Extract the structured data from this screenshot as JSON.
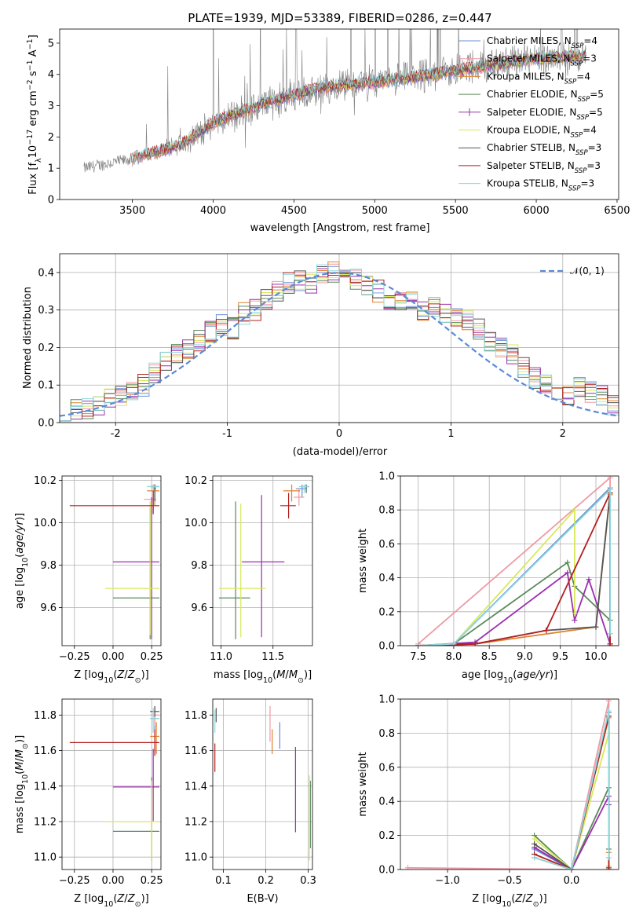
{
  "colors": {
    "Chabrier MILES": "#6b8fd6",
    "Salpeter MILES": "#ef9aa6",
    "Kroupa MILES": "#e0822f",
    "Chabrier ELODIE": "#5a8a5a",
    "Salpeter ELODIE": "#9b2fae",
    "Kroupa ELODIE": "#d8e85a",
    "Chabrier STELIB": "#555555",
    "Salpeter STELIB": "#b22020",
    "Kroupa STELIB": "#8fd6dd",
    "data": "#808080",
    "normal": "#5b8ad8"
  },
  "models": [
    {
      "name": "Chabrier MILES",
      "nssp": "4"
    },
    {
      "name": "Salpeter MILES",
      "nssp": "3"
    },
    {
      "name": "Kroupa MILES",
      "nssp": "4"
    },
    {
      "name": "Chabrier ELODIE",
      "nssp": "5"
    },
    {
      "name": "Salpeter ELODIE",
      "nssp": "5"
    },
    {
      "name": "Kroupa ELODIE",
      "nssp": "4"
    },
    {
      "name": "Chabrier STELIB",
      "nssp": "3"
    },
    {
      "name": "Salpeter STELIB",
      "nssp": "3"
    },
    {
      "name": "Kroupa STELIB",
      "nssp": "3"
    }
  ],
  "chart_data": [
    {
      "id": "spectrum",
      "type": "line",
      "title": "PLATE=1939, MJD=53389, FIBERID=0286, z=0.447",
      "xlabel": "wavelength [Angstrom, rest frame]",
      "ylabel": "Flux [fλ10⁻¹⁷ erg cm⁻² s⁻¹ A⁻¹]",
      "xlim": [
        3050,
        6510
      ],
      "ylim": [
        0,
        5.45
      ],
      "xticks": [
        3500,
        4000,
        4500,
        5000,
        5500,
        6000,
        6500
      ],
      "yticks": [
        0,
        1,
        2,
        3,
        4,
        5
      ],
      "grid": false,
      "legend": "upper right",
      "continuum": [
        [
          3200,
          1.0
        ],
        [
          3500,
          1.3
        ],
        [
          3800,
          1.75
        ],
        [
          4000,
          2.45
        ],
        [
          4300,
          3.05
        ],
        [
          4500,
          3.35
        ],
        [
          4700,
          3.6
        ],
        [
          5000,
          3.75
        ],
        [
          5300,
          3.95
        ],
        [
          5600,
          4.2
        ],
        [
          6000,
          4.5
        ],
        [
          6300,
          4.6
        ]
      ]
    },
    {
      "id": "residuals",
      "type": "histogram",
      "xlabel": "(data-model)/error",
      "ylabel": "Normed distribution",
      "xlim": [
        -2.5,
        2.5
      ],
      "ylim": [
        0,
        0.45
      ],
      "xticks": [
        -2,
        -1,
        0,
        1,
        2
      ],
      "yticks": [
        0.0,
        0.1,
        0.2,
        0.3,
        0.4
      ],
      "grid": true,
      "legend": "upper right",
      "normal_label": "𝒩(0, 1)",
      "bin_width": 0.1,
      "envelope": [
        0.03,
        0.035,
        0.04,
        0.05,
        0.06,
        0.07,
        0.08,
        0.1,
        0.13,
        0.16,
        0.18,
        0.2,
        0.22,
        0.24,
        0.26,
        0.25,
        0.29,
        0.3,
        0.33,
        0.35,
        0.37,
        0.38,
        0.37,
        0.4,
        0.4,
        0.39,
        0.38,
        0.36,
        0.35,
        0.33,
        0.33,
        0.32,
        0.3,
        0.31,
        0.29,
        0.28,
        0.27,
        0.25,
        0.22,
        0.2,
        0.18,
        0.15,
        0.12,
        0.1,
        0.08,
        0.07,
        0.09,
        0.08,
        0.07,
        0.05
      ]
    },
    {
      "id": "age_vs_Z",
      "type": "errorbar",
      "xlabel": "Z [log10(Z/Z⊙)]",
      "ylabel": "age  [log10(age/yr)]",
      "xlim": [
        -0.33,
        0.31
      ],
      "ylim": [
        9.42,
        10.22
      ],
      "xticks": [
        -0.25,
        0.0,
        0.25
      ],
      "xticklabels": [
        "−0.25",
        "0.00",
        "0.25"
      ],
      "yticks": [
        9.6,
        9.8,
        10.0,
        10.2
      ],
      "grid": true,
      "points": [
        {
          "model": "Chabrier MILES",
          "x": 0.27,
          "xe": [
            0.26,
            0.28
          ],
          "y": 10.16,
          "ye": [
            10.1,
            10.17
          ]
        },
        {
          "model": "Salpeter MILES",
          "x": 0.26,
          "xe": [
            0.2,
            0.28
          ],
          "y": 10.11,
          "ye": [
            10.06,
            10.18
          ]
        },
        {
          "model": "Kroupa MILES",
          "x": 0.27,
          "xe": [
            0.22,
            0.3
          ],
          "y": 10.15,
          "ye": [
            10.08,
            10.18
          ]
        },
        {
          "model": "Chabrier ELODIE",
          "x": 0.24,
          "xe": [
            0.0,
            0.3
          ],
          "y": 9.645,
          "ye": [
            9.45,
            10.07
          ]
        },
        {
          "model": "Salpeter ELODIE",
          "x": 0.25,
          "xe": [
            0.0,
            0.3
          ],
          "y": 9.815,
          "ye": [
            9.45,
            10.12
          ]
        },
        {
          "model": "Kroupa ELODIE",
          "x": 0.24,
          "xe": [
            -0.05,
            0.3
          ],
          "y": 9.69,
          "ye": [
            9.47,
            10.1
          ]
        },
        {
          "model": "Chabrier STELIB",
          "x": 0.27,
          "xe": [
            0.24,
            0.3
          ],
          "y": 10.17,
          "ye": [
            10.1,
            10.18
          ]
        },
        {
          "model": "Salpeter STELIB",
          "x": 0.26,
          "xe": [
            -0.28,
            0.3
          ],
          "y": 10.08,
          "ye": [
            10.04,
            10.15
          ]
        },
        {
          "model": "Kroupa STELIB",
          "x": 0.25,
          "xe": [
            0.22,
            0.3
          ],
          "y": 10.17,
          "ye": [
            10.16,
            10.18
          ]
        }
      ]
    },
    {
      "id": "age_vs_mass",
      "type": "errorbar",
      "xlabel": "mass [log10(M/M⊙)]",
      "ylabel": "",
      "xlim": [
        10.92,
        11.88
      ],
      "ylim": [
        9.42,
        10.22
      ],
      "xticks": [
        11.0,
        11.5
      ],
      "xticklabels": [
        "11.0",
        "11.5"
      ],
      "yticks": [
        9.6,
        9.8,
        10.0,
        10.2
      ],
      "grid": true,
      "points": [
        {
          "model": "Chabrier MILES",
          "x": 11.78,
          "xe": [
            11.72,
            11.82
          ],
          "y": 10.16,
          "ye": [
            10.12,
            10.18
          ]
        },
        {
          "model": "Salpeter MILES",
          "x": 11.75,
          "xe": [
            11.7,
            11.8
          ],
          "y": 10.12,
          "ye": [
            10.08,
            10.16
          ]
        },
        {
          "model": "Kroupa MILES",
          "x": 11.68,
          "xe": [
            11.6,
            11.76
          ],
          "y": 10.15,
          "ye": [
            10.1,
            10.18
          ]
        },
        {
          "model": "Chabrier ELODIE",
          "x": 11.14,
          "xe": [
            10.98,
            11.28
          ],
          "y": 9.645,
          "ye": [
            9.45,
            10.1
          ]
        },
        {
          "model": "Salpeter ELODIE",
          "x": 11.39,
          "xe": [
            11.2,
            11.61
          ],
          "y": 9.815,
          "ye": [
            9.46,
            10.13
          ]
        },
        {
          "model": "Kroupa ELODIE",
          "x": 11.19,
          "xe": [
            10.98,
            11.43
          ],
          "y": 9.69,
          "ye": [
            9.46,
            10.09
          ]
        },
        {
          "model": "Chabrier STELIB",
          "x": 11.82,
          "xe": [
            11.79,
            11.85
          ],
          "y": 10.17,
          "ye": [
            10.14,
            10.18
          ]
        },
        {
          "model": "Salpeter STELIB",
          "x": 11.65,
          "xe": [
            11.57,
            11.72
          ],
          "y": 10.08,
          "ye": [
            10.02,
            10.14
          ]
        },
        {
          "model": "Kroupa STELIB",
          "x": 11.8,
          "xe": [
            11.75,
            11.85
          ],
          "y": 10.17,
          "ye": [
            10.14,
            10.18
          ]
        }
      ]
    },
    {
      "id": "massweight_vs_age",
      "type": "line",
      "xlabel": "age  [log10(age/yr)]",
      "ylabel": "mass weight",
      "xlim": [
        7.25,
        10.32
      ],
      "ylim": [
        0,
        1.0
      ],
      "xticks": [
        7.5,
        8.0,
        8.5,
        9.0,
        9.5,
        10.0
      ],
      "xticklabels": [
        "7.5",
        "8.0",
        "8.5",
        "9.0",
        "9.5",
        "10.0"
      ],
      "yticks": [
        0.0,
        0.2,
        0.4,
        0.6,
        0.8,
        1.0
      ],
      "grid": true,
      "series": [
        {
          "model": "Chabrier MILES",
          "x": [
            7.5,
            8.0,
            10.2,
            10.2
          ],
          "y": [
            0.0,
            0.01,
            0.93,
            0.07
          ]
        },
        {
          "model": "Salpeter MILES",
          "x": [
            7.5,
            10.2,
            10.2
          ],
          "y": [
            0.01,
            0.99,
            0.01
          ]
        },
        {
          "model": "Kroupa MILES",
          "x": [
            7.5,
            8.3,
            10.0,
            10.2,
            10.2
          ],
          "y": [
            0.0,
            0.01,
            0.11,
            0.89,
            0.0
          ]
        },
        {
          "model": "Chabrier ELODIE",
          "x": [
            7.5,
            8.0,
            9.6,
            9.7,
            10.2
          ],
          "y": [
            0.0,
            0.01,
            0.49,
            0.35,
            0.15
          ]
        },
        {
          "model": "Salpeter ELODIE",
          "x": [
            7.5,
            8.3,
            9.6,
            9.7,
            9.9,
            10.2
          ],
          "y": [
            0.0,
            0.02,
            0.43,
            0.15,
            0.39,
            0.01
          ]
        },
        {
          "model": "Kroupa ELODIE",
          "x": [
            7.5,
            8.0,
            9.7,
            9.7
          ],
          "y": [
            0.0,
            0.01,
            0.8,
            0.19
          ]
        },
        {
          "model": "Chabrier STELIB",
          "x": [
            7.5,
            8.3,
            9.3,
            10.0,
            10.2,
            10.2
          ],
          "y": [
            0.0,
            0.01,
            0.09,
            0.11,
            0.9,
            0.0
          ]
        },
        {
          "model": "Salpeter STELIB",
          "x": [
            7.5,
            8.3,
            9.3,
            10.2,
            10.2
          ],
          "y": [
            0.0,
            0.01,
            0.09,
            0.9,
            0.01
          ]
        },
        {
          "model": "Kroupa STELIB",
          "x": [
            7.5,
            8.0,
            10.2,
            10.2
          ],
          "y": [
            0.0,
            0.01,
            0.92,
            0.07
          ]
        }
      ]
    },
    {
      "id": "mass_vs_Z",
      "type": "errorbar",
      "xlabel": "Z [log10(Z/Z⊙)]",
      "ylabel": "mass [log10(M/M⊙)]",
      "xlim": [
        -0.33,
        0.31
      ],
      "ylim": [
        10.93,
        11.89
      ],
      "xticks": [
        -0.25,
        0.0,
        0.25
      ],
      "xticklabels": [
        "−0.25",
        "0.00",
        "0.25"
      ],
      "yticks": [
        11.0,
        11.2,
        11.4,
        11.6,
        11.8
      ],
      "grid": true,
      "points": [
        {
          "model": "Chabrier MILES",
          "x": 0.27,
          "xe": [
            0.24,
            0.3
          ],
          "y": 11.78,
          "ye": [
            11.72,
            11.84
          ]
        },
        {
          "model": "Salpeter MILES",
          "x": 0.27,
          "xe": [
            0.24,
            0.3
          ],
          "y": 11.8,
          "ye": [
            11.74,
            11.85
          ]
        },
        {
          "model": "Kroupa MILES",
          "x": 0.28,
          "xe": [
            0.24,
            0.3
          ],
          "y": 11.68,
          "ye": [
            11.58,
            11.76
          ]
        },
        {
          "model": "Chabrier ELODIE",
          "x": 0.25,
          "xe": [
            0.0,
            0.3
          ],
          "y": 11.145,
          "ye": [
            10.98,
            11.45
          ]
        },
        {
          "model": "Salpeter ELODIE",
          "x": 0.26,
          "xe": [
            0.0,
            0.3
          ],
          "y": 11.395,
          "ye": [
            11.2,
            11.61
          ]
        },
        {
          "model": "Kroupa ELODIE",
          "x": 0.25,
          "xe": [
            -0.05,
            0.3
          ],
          "y": 11.2,
          "ye": [
            10.98,
            11.43
          ]
        },
        {
          "model": "Chabrier STELIB",
          "x": 0.27,
          "xe": [
            0.24,
            0.3
          ],
          "y": 11.82,
          "ye": [
            11.79,
            11.85
          ]
        },
        {
          "model": "Salpeter STELIB",
          "x": 0.27,
          "xe": [
            -0.28,
            0.3
          ],
          "y": 11.645,
          "ye": [
            11.57,
            11.72
          ]
        },
        {
          "model": "Kroupa STELIB",
          "x": 0.26,
          "xe": [
            0.24,
            0.3
          ],
          "y": 11.78,
          "ye": [
            11.7,
            11.84
          ]
        }
      ]
    },
    {
      "id": "mass_vs_ebv",
      "type": "errorbar",
      "xlabel": "E(B-V)",
      "ylabel": "",
      "xlim": [
        0.075,
        0.31
      ],
      "ylim": [
        10.93,
        11.89
      ],
      "xticks": [
        0.1,
        0.2,
        0.3
      ],
      "xticklabels": [
        "0.1",
        "0.2",
        "0.3"
      ],
      "yticks": [
        11.0,
        11.2,
        11.4,
        11.6,
        11.8
      ],
      "grid": true,
      "points": [
        {
          "model": "Chabrier MILES",
          "x": 0.233,
          "xe": [
            0.233,
            0.233
          ],
          "y": 11.7,
          "ye": [
            11.61,
            11.76
          ]
        },
        {
          "model": "Salpeter MILES",
          "x": 0.21,
          "xe": [
            0.21,
            0.21
          ],
          "y": 11.75,
          "ye": [
            11.65,
            11.85
          ]
        },
        {
          "model": "Kroupa MILES",
          "x": 0.215,
          "xe": [
            0.215,
            0.215
          ],
          "y": 11.65,
          "ye": [
            11.58,
            11.72
          ]
        },
        {
          "model": "Chabrier ELODIE",
          "x": 0.305,
          "xe": [
            0.305,
            0.305
          ],
          "y": 11.2,
          "ye": [
            11.05,
            11.43
          ]
        },
        {
          "model": "Salpeter ELODIE",
          "x": 0.27,
          "xe": [
            0.27,
            0.27
          ],
          "y": 11.38,
          "ye": [
            11.14,
            11.62
          ]
        },
        {
          "model": "Kroupa ELODIE",
          "x": 0.303,
          "xe": [
            0.303,
            0.303
          ],
          "y": 11.2,
          "ye": [
            10.98,
            11.46
          ]
        },
        {
          "model": "Chabrier STELIB",
          "x": 0.083,
          "xe": [
            0.083,
            0.083
          ],
          "y": 11.8,
          "ye": [
            11.76,
            11.84
          ]
        },
        {
          "model": "Salpeter STELIB",
          "x": 0.08,
          "xe": [
            0.08,
            0.08
          ],
          "y": 11.55,
          "ye": [
            11.48,
            11.64
          ]
        },
        {
          "model": "Kroupa STELIB",
          "x": 0.08,
          "xe": [
            0.08,
            0.08
          ],
          "y": 11.76,
          "ye": [
            11.7,
            11.83
          ]
        }
      ]
    },
    {
      "id": "massweight_vs_Z",
      "type": "line",
      "xlabel": "Z [log10(Z/Z⊙)]",
      "ylabel": "mass weight",
      "xlim": [
        -1.38,
        0.38
      ],
      "ylim": [
        0,
        1.0
      ],
      "xticks": [
        -1.0,
        -0.5,
        0.0
      ],
      "xticklabels": [
        "−1.0",
        "−0.5",
        "0.0"
      ],
      "yticks": [
        0.0,
        0.2,
        0.4,
        0.6,
        0.8,
        1.0
      ],
      "grid": true,
      "series": [
        {
          "model": "Chabrier MILES",
          "x": [
            -0.3,
            0.0,
            0.3,
            0.3
          ],
          "y": [
            0.12,
            0.0,
            0.92,
            0.02
          ]
        },
        {
          "model": "Salpeter MILES",
          "x": [
            -1.32,
            0.0,
            0.3,
            0.3
          ],
          "y": [
            0.01,
            0.0,
            0.99,
            0.0
          ]
        },
        {
          "model": "Kroupa MILES",
          "x": [
            -0.3,
            0.0,
            0.3,
            0.3
          ],
          "y": [
            0.07,
            0.0,
            0.89,
            0.1
          ]
        },
        {
          "model": "Chabrier ELODIE",
          "x": [
            -0.3,
            0.0,
            0.3,
            0.3
          ],
          "y": [
            0.2,
            0.0,
            0.48,
            0.12
          ]
        },
        {
          "model": "Salpeter ELODIE",
          "x": [
            -0.3,
            0.0,
            0.3,
            0.3
          ],
          "y": [
            0.13,
            0.0,
            0.43,
            0.38
          ]
        },
        {
          "model": "Kroupa ELODIE",
          "x": [
            -0.3,
            0.0,
            0.3,
            0.3
          ],
          "y": [
            0.18,
            0.0,
            0.8,
            0.02
          ]
        },
        {
          "model": "Chabrier STELIB",
          "x": [
            -0.3,
            0.0,
            0.3,
            0.3
          ],
          "y": [
            0.15,
            0.0,
            0.9,
            0.0
          ]
        },
        {
          "model": "Salpeter STELIB",
          "x": [
            -0.3,
            0.0,
            0.3,
            0.3
          ],
          "y": [
            0.09,
            0.0,
            0.9,
            0.01
          ]
        },
        {
          "model": "Kroupa STELIB",
          "x": [
            -0.3,
            0.0,
            0.3,
            0.3
          ],
          "y": [
            0.07,
            0.0,
            0.93,
            0.07
          ]
        }
      ]
    }
  ]
}
